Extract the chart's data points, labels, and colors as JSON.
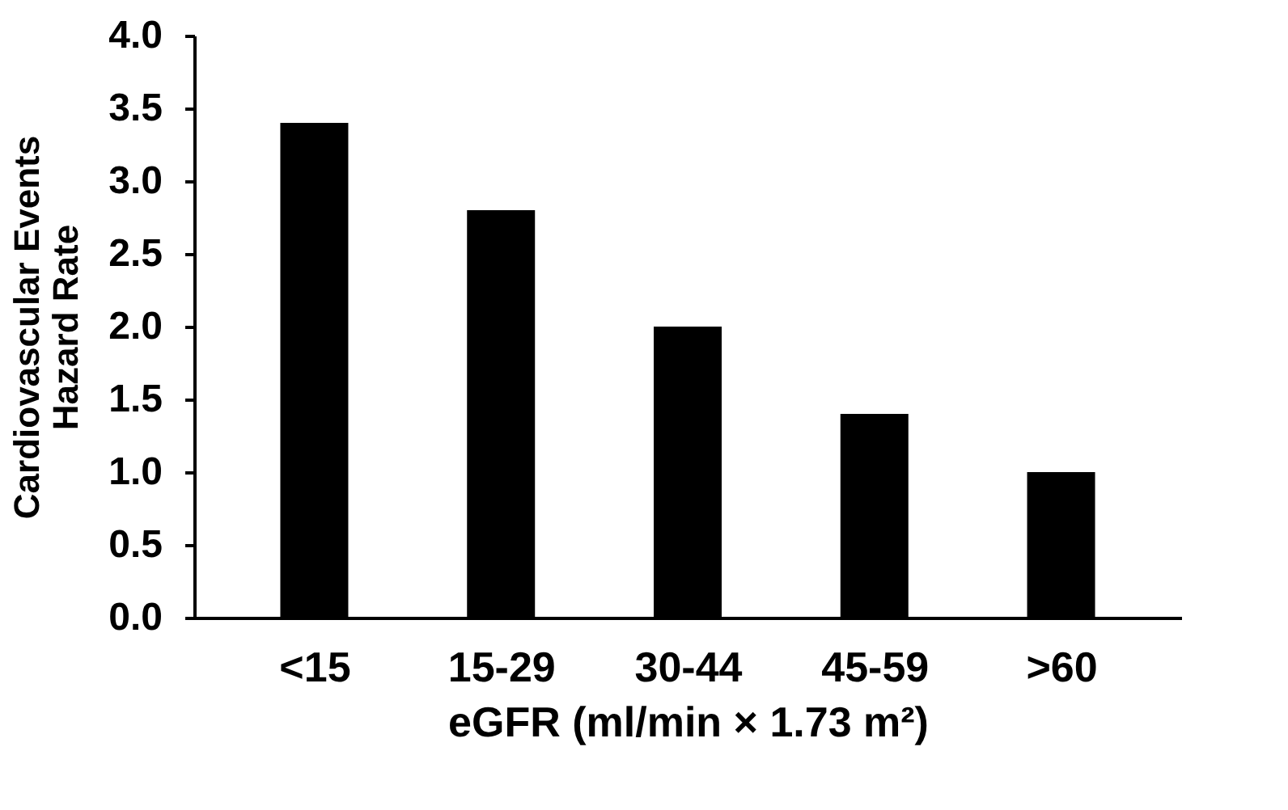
{
  "chart_data": {
    "type": "bar",
    "xlabel": "eGFR (ml/min × 1.73 m²)",
    "ylabel": "Cardiovascular Events\nHazard Rate",
    "categories": [
      "<15",
      "15-29",
      "30-44",
      "45-59",
      ">60"
    ],
    "values": [
      3.4,
      2.8,
      2.0,
      1.4,
      1.0
    ],
    "color": "#000000",
    "ylim": [
      0,
      4.0
    ],
    "yticks": [
      {
        "value": 0,
        "label": "0.0"
      },
      {
        "value": 0.5,
        "label": "0.5"
      },
      {
        "value": 1,
        "label": "1.0"
      },
      {
        "value": 1.5,
        "label": "1.5"
      },
      {
        "value": 2,
        "label": "2.0"
      },
      {
        "value": 2.5,
        "label": "2.5"
      },
      {
        "value": 3,
        "label": "3.0"
      },
      {
        "value": 3.5,
        "label": "3.5"
      },
      {
        "value": 4,
        "label": "4.0"
      }
    ],
    "grid": false
  }
}
